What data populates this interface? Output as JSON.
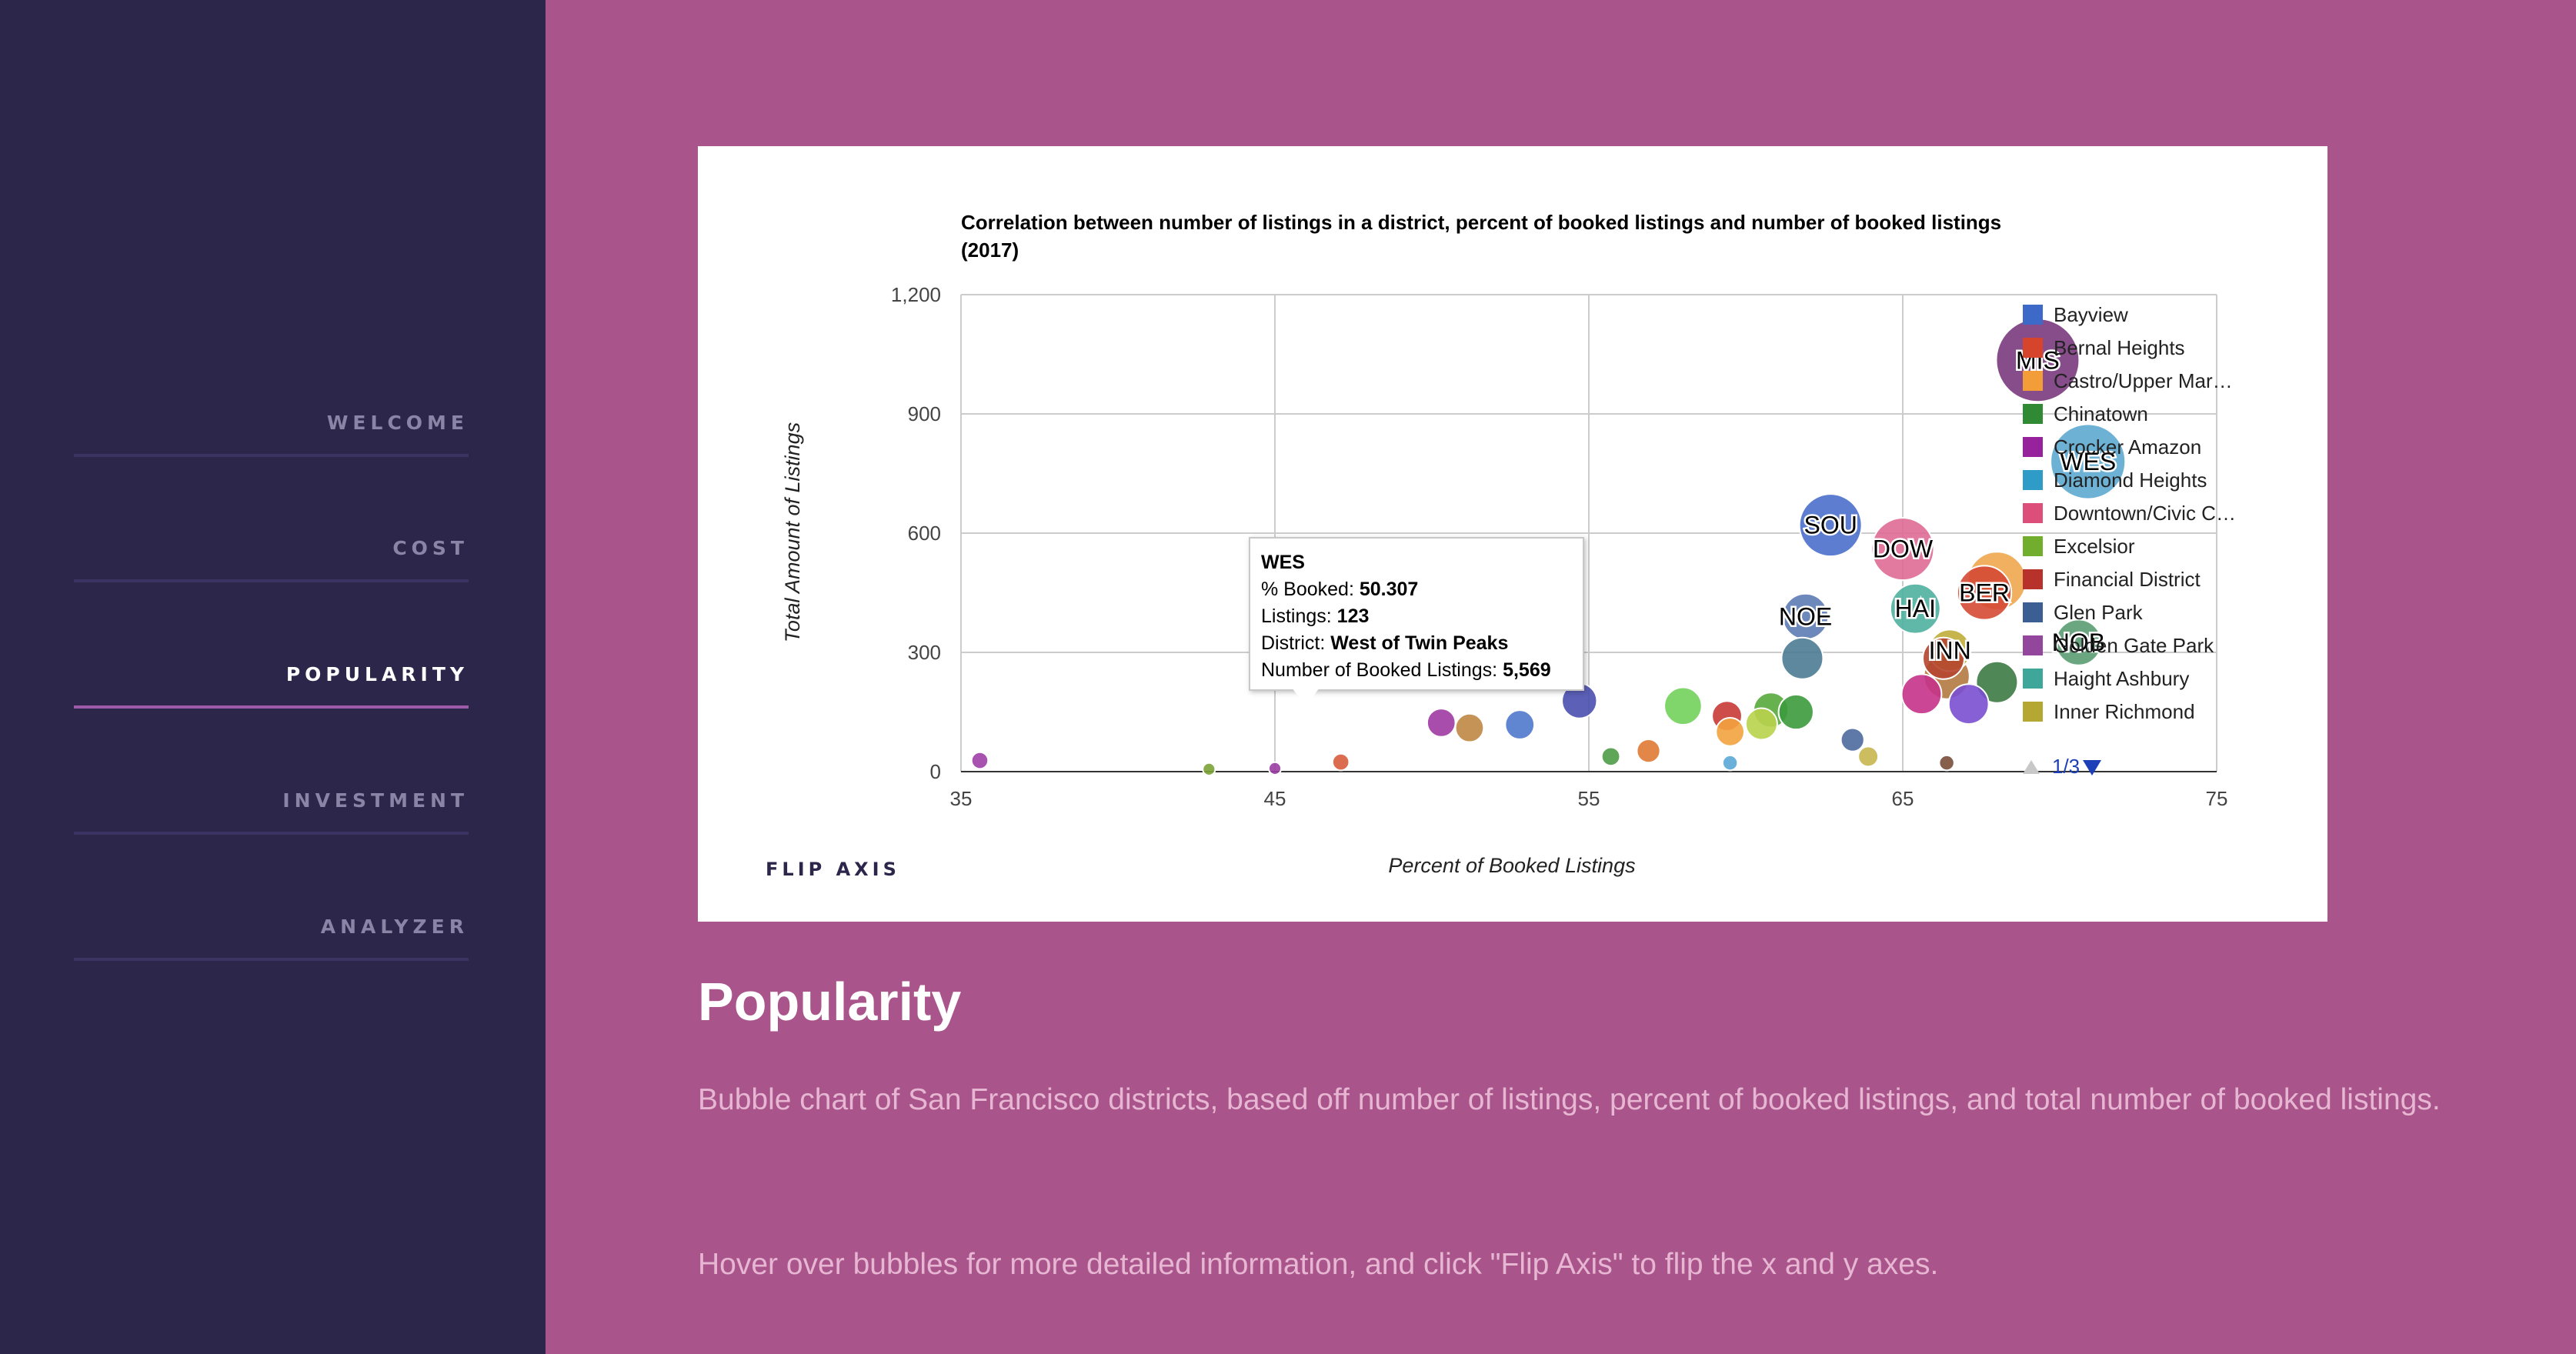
{
  "nav": {
    "items": [
      {
        "label": "WELCOME",
        "active": false
      },
      {
        "label": "COST",
        "active": false
      },
      {
        "label": "POPULARITY",
        "active": true
      },
      {
        "label": "INVESTMENT",
        "active": false
      },
      {
        "label": "ANALYZER",
        "active": false
      }
    ]
  },
  "controls": {
    "flip_axis": "FLIP AXIS"
  },
  "colors": {
    "background": "#a9548a",
    "sidebar": "#2c264b",
    "active_underline": "#9c5aa8"
  },
  "tooltip": {
    "title": "WES",
    "booked_label": "% Booked:",
    "booked_value": "50.307",
    "listings_label": "Listings:",
    "listings_value": "123",
    "district_label": "District:",
    "district_value": "West of Twin Peaks",
    "booked_listings_label": "Number of Booked Listings:",
    "booked_listings_value": "5,569"
  },
  "legend_pager": {
    "text": "1/3"
  },
  "content": {
    "title": "Popularity",
    "paragraph1": "Bubble chart of San Francisco districts, based off number of listings, percent of booked listings, and total number of booked listings.",
    "paragraph2": "Hover over bubbles for more detailed information, and click \"Flip Axis\" to flip the x and y axes."
  },
  "chart_data": {
    "type": "scatter",
    "variant": "bubble",
    "title_lines": [
      "Correlation between number of listings in a district, percent of booked listings and number of booked listings",
      "(2017)"
    ],
    "xlabel": "Percent of Booked Listings",
    "ylabel": "Total Amount of Listings",
    "xlim": [
      35,
      75
    ],
    "ylim": [
      0,
      1200
    ],
    "xticks": [
      35,
      45,
      55,
      65,
      75
    ],
    "yticks": [
      0,
      300,
      600,
      900,
      1200
    ],
    "ytick_labels": [
      "0",
      "300",
      "600",
      "900",
      "1,200"
    ],
    "grid": true,
    "legend_position": "right",
    "legend": [
      {
        "name": "Bayview",
        "color": "#3d6ac9"
      },
      {
        "name": "Bernal Heights",
        "color": "#d6452b"
      },
      {
        "name": "Castro/Upper Mar…",
        "color": "#f29d38"
      },
      {
        "name": "Chinatown",
        "color": "#2f8a33"
      },
      {
        "name": "Crocker Amazon",
        "color": "#96239b"
      },
      {
        "name": "Diamond Heights",
        "color": "#2f9bc7"
      },
      {
        "name": "Downtown/Civic C…",
        "color": "#db4f7a"
      },
      {
        "name": "Excelsior",
        "color": "#71ae2e"
      },
      {
        "name": "Financial District",
        "color": "#b7322b"
      },
      {
        "name": "Glen Park",
        "color": "#3b5f92"
      },
      {
        "name": "Golden Gate Park",
        "color": "#93479c"
      },
      {
        "name": "Haight Ashbury",
        "color": "#3ea79a"
      },
      {
        "name": "Inner Richmond",
        "color": "#b5a832"
      }
    ],
    "points": [
      {
        "label": "MIS",
        "x": 69.3,
        "y": 1035,
        "size": 1.0,
        "color": "#7a3a7e"
      },
      {
        "label": "WES",
        "x": 70.9,
        "y": 780,
        "size": 0.9,
        "color": "#5da8d0"
      },
      {
        "label": "SOU",
        "x": 62.7,
        "y": 620,
        "size": 0.75,
        "color": "#4a6fcb"
      },
      {
        "label": "DOW",
        "x": 65.0,
        "y": 560,
        "size": 0.75,
        "color": "#de6b94"
      },
      {
        "label": "",
        "x": 68.0,
        "y": 480,
        "size": 0.7,
        "color": "#f0a64f"
      },
      {
        "label": "BER",
        "x": 67.6,
        "y": 450,
        "size": 0.65,
        "color": "#d44a34"
      },
      {
        "label": "HAI",
        "x": 65.4,
        "y": 410,
        "size": 0.6,
        "color": "#4fb09f"
      },
      {
        "label": "NOE",
        "x": 61.9,
        "y": 390,
        "size": 0.55,
        "color": "#5d7bb3"
      },
      {
        "label": "NOB",
        "x": 70.6,
        "y": 325,
        "size": 0.55,
        "color": "#5a9d72"
      },
      {
        "label": "INN",
        "x": 66.5,
        "y": 305,
        "size": 0.5,
        "color": "#c0ad3a"
      },
      {
        "label": "",
        "x": 66.3,
        "y": 285,
        "size": 0.5,
        "color": "#b5452f"
      },
      {
        "label": "",
        "x": 61.8,
        "y": 285,
        "size": 0.5,
        "color": "#4b7b93"
      },
      {
        "label": "",
        "x": 66.4,
        "y": 240,
        "size": 0.55,
        "color": "#b37941"
      },
      {
        "label": "",
        "x": 68.0,
        "y": 225,
        "size": 0.5,
        "color": "#3d7a45"
      },
      {
        "label": "",
        "x": 65.6,
        "y": 195,
        "size": 0.48,
        "color": "#c5338a"
      },
      {
        "label": "",
        "x": 67.1,
        "y": 170,
        "size": 0.48,
        "color": "#7a4fd0"
      },
      {
        "label": "",
        "x": 58.0,
        "y": 165,
        "size": 0.45,
        "color": "#72d15a"
      },
      {
        "label": "",
        "x": 54.7,
        "y": 178,
        "size": 0.42,
        "color": "#4a4fae"
      },
      {
        "label": "",
        "x": 60.8,
        "y": 155,
        "size": 0.42,
        "color": "#58a83c"
      },
      {
        "label": "",
        "x": 61.6,
        "y": 150,
        "size": 0.42,
        "color": "#3c9b3c"
      },
      {
        "label": "",
        "x": 59.4,
        "y": 140,
        "size": 0.36,
        "color": "#c63a35"
      },
      {
        "label": "",
        "x": 60.5,
        "y": 120,
        "size": 0.38,
        "color": "#b9d34c"
      },
      {
        "label": "",
        "x": 59.5,
        "y": 100,
        "size": 0.34,
        "color": "#f3a33f"
      },
      {
        "label": "",
        "x": 52.8,
        "y": 118,
        "size": 0.35,
        "color": "#4f79cc"
      },
      {
        "label": "",
        "x": 50.3,
        "y": 123,
        "size": 0.34,
        "color": "#a03aa3"
      },
      {
        "label": "",
        "x": 51.2,
        "y": 110,
        "size": 0.34,
        "color": "#c08745"
      },
      {
        "label": "",
        "x": 63.4,
        "y": 80,
        "size": 0.28,
        "color": "#4c6a9e"
      },
      {
        "label": "",
        "x": 56.9,
        "y": 52,
        "size": 0.28,
        "color": "#e07a35"
      },
      {
        "label": "",
        "x": 55.7,
        "y": 38,
        "size": 0.22,
        "color": "#4f9c47"
      },
      {
        "label": "",
        "x": 63.9,
        "y": 38,
        "size": 0.24,
        "color": "#c7b64f"
      },
      {
        "label": "",
        "x": 59.5,
        "y": 22,
        "size": 0.18,
        "color": "#5aa7d6"
      },
      {
        "label": "",
        "x": 47.1,
        "y": 24,
        "size": 0.2,
        "color": "#d85c3c"
      },
      {
        "label": "",
        "x": 35.6,
        "y": 28,
        "size": 0.2,
        "color": "#a040a8"
      },
      {
        "label": "",
        "x": 45.0,
        "y": 8,
        "size": 0.15,
        "color": "#9a3ea3"
      },
      {
        "label": "",
        "x": 42.9,
        "y": 6,
        "size": 0.15,
        "color": "#7aa335"
      },
      {
        "label": "",
        "x": 66.4,
        "y": 22,
        "size": 0.18,
        "color": "#7a4e3a"
      }
    ]
  }
}
